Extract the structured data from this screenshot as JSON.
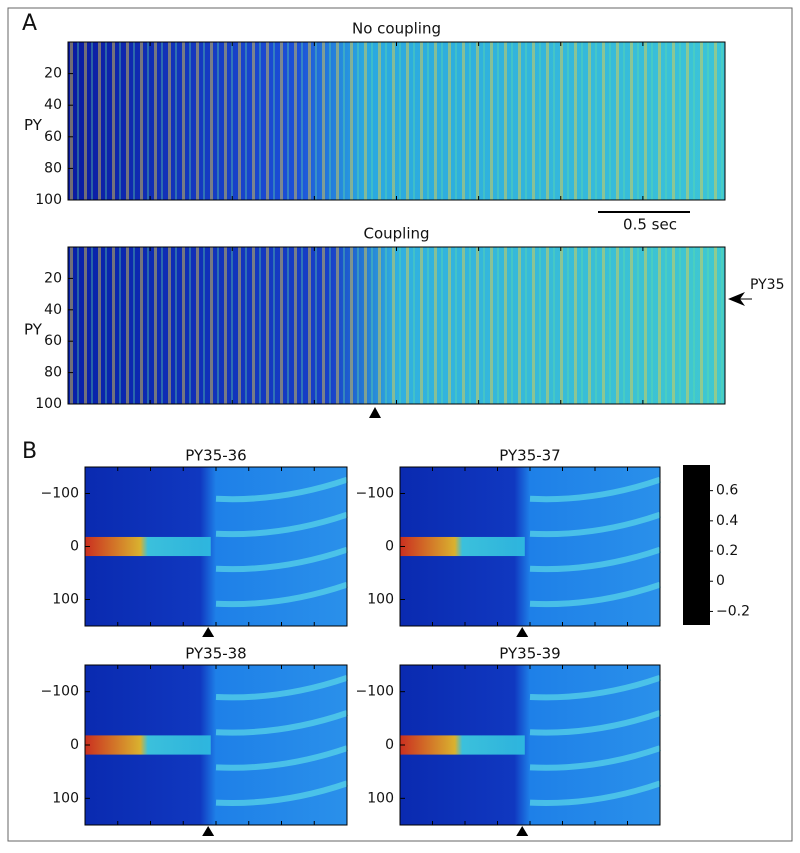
{
  "panels": [
    {
      "label": "A",
      "plots": [
        {
          "title": "No coupling",
          "ylabel": "PY",
          "ylim": [
            0,
            100
          ],
          "yticks": [
            20,
            40,
            60,
            80,
            100
          ]
        },
        {
          "title": "Coupling",
          "ylabel": "PY",
          "ylim": [
            0,
            100
          ],
          "yticks": [
            20,
            40,
            60,
            80,
            100
          ],
          "annotation": "PY35"
        }
      ],
      "scale_bar": "0.5 sec"
    },
    {
      "label": "B",
      "plots": [
        {
          "title": "PY35-36",
          "ylim": [
            -150,
            150
          ],
          "yticks": [
            {
              "value": -100,
              "label": "−100"
            },
            0,
            100
          ]
        },
        {
          "title": "PY35-37",
          "ylim": [
            -150,
            150
          ],
          "yticks": [
            {
              "value": -100,
              "label": "−100"
            },
            0,
            100
          ]
        },
        {
          "title": "PY35-38",
          "ylim": [
            -150,
            150
          ],
          "yticks": [
            {
              "value": -100,
              "label": "−100"
            },
            0,
            100
          ]
        },
        {
          "title": "PY35-39",
          "ylim": [
            -150,
            150
          ],
          "yticks": [
            {
              "value": -100,
              "label": "−100"
            },
            0,
            100
          ]
        }
      ],
      "colorbar": {
        "ylim": [
          -0.29,
          0.77
        ],
        "yticks": [
          0.6,
          0.4,
          0.2,
          0,
          {
            "value": -0.2,
            "label": "−0.2"
          }
        ]
      }
    }
  ]
}
